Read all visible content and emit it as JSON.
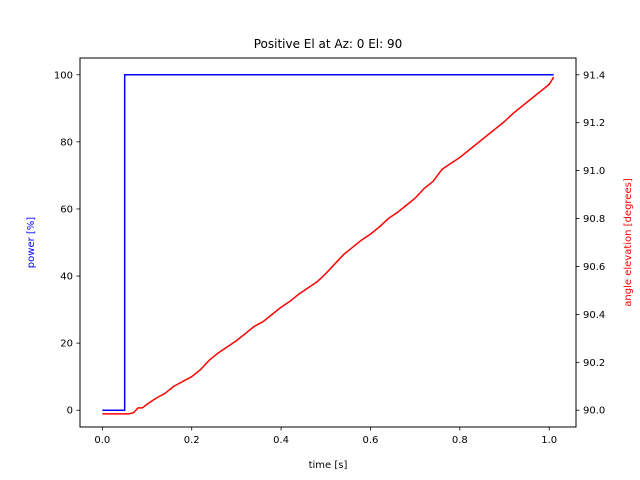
{
  "chart_data": {
    "type": "line",
    "title": "Positive El at Az: 0 El: 90",
    "xlabel": "time [s]",
    "ylabel_left": "power [%]",
    "ylabel_right": "angle elevation [degrees]",
    "xlim": [
      -0.05,
      1.06
    ],
    "ylim_left": [
      -5,
      105
    ],
    "ylim_right": [
      89.93,
      91.47
    ],
    "x_ticks": [
      0.0,
      0.2,
      0.4,
      0.6,
      0.8,
      1.0
    ],
    "x_tick_labels": [
      "0.0",
      "0.2",
      "0.4",
      "0.6",
      "0.8",
      "1.0"
    ],
    "y_left_ticks": [
      0,
      20,
      40,
      60,
      80,
      100
    ],
    "y_left_tick_labels": [
      "0",
      "20",
      "40",
      "60",
      "80",
      "100"
    ],
    "y_right_ticks": [
      90.0,
      90.2,
      90.4,
      90.6,
      90.8,
      91.0,
      91.2,
      91.4
    ],
    "y_right_tick_labels": [
      "90.0",
      "90.2",
      "90.4",
      "90.6",
      "90.8",
      "91.0",
      "91.2",
      "91.4"
    ],
    "grid": false,
    "colors": {
      "power": "#0000ff",
      "elevation": "#ff0000",
      "axes": "#000000"
    },
    "series": [
      {
        "axis": "left",
        "color": "#0000ff",
        "step": true,
        "x": [
          0.0,
          0.05,
          0.05,
          1.01
        ],
        "y": [
          0,
          0,
          100,
          100
        ]
      },
      {
        "axis": "right",
        "color": "#ff0000",
        "x": [
          0.0,
          0.02,
          0.04,
          0.06,
          0.07,
          0.08,
          0.09,
          0.1,
          0.12,
          0.14,
          0.16,
          0.18,
          0.2,
          0.22,
          0.24,
          0.26,
          0.28,
          0.3,
          0.32,
          0.34,
          0.36,
          0.38,
          0.4,
          0.42,
          0.44,
          0.46,
          0.48,
          0.5,
          0.52,
          0.54,
          0.56,
          0.58,
          0.6,
          0.62,
          0.64,
          0.66,
          0.68,
          0.7,
          0.72,
          0.74,
          0.76,
          0.78,
          0.8,
          0.82,
          0.84,
          0.86,
          0.88,
          0.9,
          0.92,
          0.94,
          0.96,
          0.98,
          1.0,
          1.01
        ],
        "y": [
          89.985,
          89.985,
          89.985,
          89.985,
          89.99,
          90.01,
          90.01,
          90.025,
          90.05,
          90.07,
          90.1,
          90.12,
          90.14,
          90.17,
          90.21,
          90.24,
          90.265,
          90.29,
          90.32,
          90.35,
          90.37,
          90.4,
          90.43,
          90.455,
          90.485,
          90.51,
          90.535,
          90.57,
          90.61,
          90.65,
          90.68,
          90.71,
          90.735,
          90.765,
          90.8,
          90.825,
          90.855,
          90.885,
          90.925,
          90.955,
          91.005,
          91.03,
          91.055,
          91.085,
          91.115,
          91.145,
          91.175,
          91.205,
          91.24,
          91.27,
          91.3,
          91.33,
          91.36,
          91.39
        ]
      }
    ]
  }
}
